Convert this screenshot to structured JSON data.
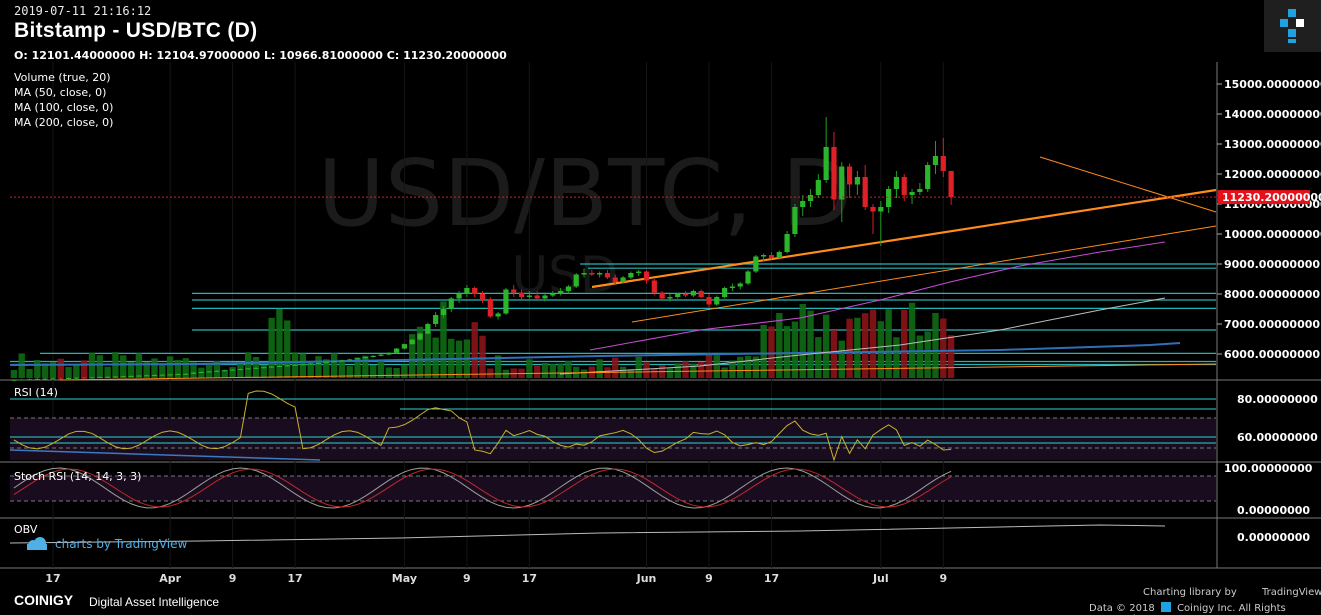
{
  "header": {
    "timestamp": "2019-07-11 21:16:12",
    "title": "Bitstamp - USD/BTC (D)",
    "ohlc": "O: 12101.44000000 H: 12104.97000000 L: 10966.81000000 C: 11230.20000000"
  },
  "studies": [
    "Volume (true, 20)",
    "MA (50, close, 0)",
    "MA (100, close, 0)",
    "MA (200, close, 0)"
  ],
  "panes": {
    "rsi_title": "RSI (14)",
    "stoch_title": "Stoch RSI (14, 14, 3, 3)",
    "obv_title": "OBV"
  },
  "watermark": {
    "main": "USD/BTC, D",
    "sub": "USD",
    "tv": "charts by TradingView"
  },
  "footer": {
    "brand": "COINIGY",
    "tagline": "Digital Asset Intelligence",
    "charting_library": "Charting library by",
    "tv_brand": "TradingView",
    "data_credit": "Data © 2018",
    "copyright": "Coinigy Inc. All Rights Reserved ©"
  },
  "colors": {
    "up": "#1e9e1e",
    "down": "#d81e26",
    "last_price_bg": "#e5101a",
    "hline": "#2fd3d3",
    "trend": "#ff8c1a",
    "ma50": "#c74cd6",
    "ma100": "#bdbdbd",
    "ma200": "#2f6fb8",
    "rsi": "#c9b22a",
    "stoch_k": "#9e9e9e",
    "stoch_d": "#c0282d"
  },
  "chart_data": {
    "type": "candlestick",
    "price_axis": {
      "labels": [
        "15000.00000000",
        "14000.00000000",
        "13000.00000000",
        "12000.00000000",
        "11000.00000000",
        "10000.00000000",
        "9000.00000000",
        "8000.00000000",
        "7000.00000000",
        "6000.00000000"
      ],
      "values": [
        15000,
        14000,
        13000,
        12000,
        11000,
        10000,
        9000,
        8000,
        7000,
        6000
      ],
      "last_price": 11230.2,
      "last_price_label": "11230.20000000"
    },
    "rsi_axis": {
      "labels": [
        "80.00000000",
        "60.00000000"
      ],
      "values": [
        80,
        60
      ]
    },
    "stoch_axis": {
      "labels": [
        "100.00000000",
        "0.00000000"
      ],
      "values": [
        100,
        0
      ]
    },
    "obv_axis": {
      "labels": [
        "0.00000000"
      ],
      "values": [
        0
      ]
    },
    "time_axis": {
      "labels": [
        "17",
        "Apr",
        "9",
        "17",
        "May",
        "9",
        "17",
        "Jun",
        "9",
        "17",
        "Jul",
        "9"
      ],
      "dates": [
        "2019-03-17",
        "2019-04-01",
        "2019-04-09",
        "2019-04-17",
        "2019-05-01",
        "2019-05-09",
        "2019-05-17",
        "2019-06-01",
        "2019-06-09",
        "2019-06-17",
        "2019-07-01",
        "2019-07-09"
      ]
    },
    "first_date": "2019-03-12",
    "candles": [
      [
        5130,
        5160,
        5110,
        5140
      ],
      [
        5140,
        5170,
        5120,
        5150
      ],
      [
        5150,
        5180,
        5130,
        5160
      ],
      [
        5160,
        5200,
        5140,
        5170
      ],
      [
        5170,
        5200,
        5150,
        5180
      ],
      [
        5180,
        5210,
        5160,
        5190
      ],
      [
        5190,
        5220,
        5170,
        5180
      ],
      [
        5180,
        5210,
        5160,
        5200
      ],
      [
        5200,
        5230,
        5180,
        5210
      ],
      [
        5210,
        5240,
        5190,
        5200
      ],
      [
        5200,
        5230,
        5180,
        5220
      ],
      [
        5220,
        5250,
        5200,
        5230
      ],
      [
        5230,
        5260,
        5210,
        5240
      ],
      [
        5240,
        5270,
        5220,
        5250
      ],
      [
        5250,
        5280,
        5230,
        5260
      ],
      [
        5260,
        5290,
        5240,
        5270
      ],
      [
        5270,
        5300,
        5250,
        5280
      ],
      [
        5280,
        5310,
        5260,
        5290
      ],
      [
        5290,
        5320,
        5270,
        5300
      ],
      [
        5300,
        5330,
        5280,
        5310
      ],
      [
        5310,
        5340,
        5290,
        5320
      ],
      [
        5320,
        5350,
        5300,
        5330
      ],
      [
        5330,
        5360,
        5310,
        5340
      ],
      [
        5340,
        5400,
        5320,
        5380
      ],
      [
        5380,
        5420,
        5360,
        5400
      ],
      [
        5400,
        5440,
        5380,
        5420
      ],
      [
        5420,
        5460,
        5400,
        5440
      ],
      [
        5440,
        5480,
        5420,
        5460
      ],
      [
        5460,
        5500,
        5440,
        5480
      ],
      [
        5480,
        5520,
        5460,
        5500
      ],
      [
        5500,
        5540,
        5480,
        5520
      ],
      [
        5520,
        5560,
        5500,
        5540
      ],
      [
        5540,
        5580,
        5520,
        5560
      ],
      [
        5560,
        5600,
        5540,
        5580
      ],
      [
        5580,
        5620,
        5560,
        5600
      ],
      [
        5600,
        5640,
        5580,
        5620
      ],
      [
        5620,
        5660,
        5600,
        5640
      ],
      [
        5640,
        5680,
        5620,
        5660
      ],
      [
        5660,
        5700,
        5640,
        5680
      ],
      [
        5680,
        5720,
        5660,
        5700
      ],
      [
        5700,
        5750,
        5680,
        5730
      ],
      [
        5730,
        5780,
        5710,
        5760
      ],
      [
        5760,
        5810,
        5740,
        5790
      ],
      [
        5790,
        5840,
        5770,
        5820
      ],
      [
        5820,
        5880,
        5800,
        5860
      ],
      [
        5860,
        5920,
        5840,
        5900
      ],
      [
        5900,
        5960,
        5880,
        5940
      ],
      [
        5940,
        6000,
        5920,
        5980
      ],
      [
        5980,
        6060,
        5960,
        6040
      ],
      [
        6040,
        6200,
        6020,
        6180
      ],
      [
        6180,
        6350,
        6150,
        6330
      ],
      [
        6330,
        6500,
        6300,
        6480
      ],
      [
        6480,
        6700,
        6450,
        6680
      ],
      [
        6680,
        7050,
        6650,
        7000
      ],
      [
        7000,
        7400,
        6900,
        7300
      ],
      [
        7300,
        7600,
        7200,
        7500
      ],
      [
        7500,
        7900,
        7400,
        7850
      ],
      [
        7850,
        8100,
        7700,
        8000
      ],
      [
        8000,
        8300,
        7900,
        8200
      ],
      [
        8200,
        8250,
        7900,
        8000
      ],
      [
        8000,
        8100,
        7700,
        7800
      ],
      [
        7800,
        7900,
        7200,
        7250
      ],
      [
        7250,
        7400,
        7150,
        7350
      ],
      [
        7350,
        8200,
        7300,
        8150
      ],
      [
        8150,
        8300,
        7900,
        8050
      ],
      [
        8050,
        8150,
        7800,
        7900
      ],
      [
        7900,
        8100,
        7850,
        7950
      ],
      [
        7950,
        8100,
        7800,
        7850
      ],
      [
        7850,
        8000,
        7750,
        7950
      ],
      [
        7950,
        8100,
        7900,
        8000
      ],
      [
        8000,
        8200,
        7950,
        8100
      ],
      [
        8100,
        8300,
        8000,
        8250
      ],
      [
        8250,
        8700,
        8200,
        8650
      ],
      [
        8650,
        8850,
        8550,
        8700
      ],
      [
        8700,
        8800,
        8600,
        8650
      ],
      [
        8650,
        8750,
        8550,
        8700
      ],
      [
        8700,
        8800,
        8500,
        8550
      ],
      [
        8550,
        8650,
        8300,
        8400
      ],
      [
        8400,
        8600,
        8350,
        8550
      ],
      [
        8550,
        8750,
        8500,
        8700
      ],
      [
        8700,
        8800,
        8600,
        8750
      ],
      [
        8750,
        8800,
        8350,
        8450
      ],
      [
        8450,
        8500,
        7950,
        8050
      ],
      [
        8050,
        8100,
        7800,
        7850
      ],
      [
        7850,
        8000,
        7750,
        7900
      ],
      [
        7900,
        8050,
        7850,
        8000
      ],
      [
        8000,
        8100,
        7900,
        7950
      ],
      [
        7950,
        8150,
        7900,
        8100
      ],
      [
        8100,
        8150,
        7850,
        7900
      ],
      [
        7900,
        8000,
        7550,
        7650
      ],
      [
        7650,
        7950,
        7600,
        7900
      ],
      [
        7900,
        8250,
        7850,
        8200
      ],
      [
        8200,
        8350,
        8100,
        8250
      ],
      [
        8250,
        8400,
        8150,
        8350
      ],
      [
        8350,
        8800,
        8300,
        8750
      ],
      [
        8750,
        9300,
        8700,
        9250
      ],
      [
        9250,
        9350,
        9100,
        9300
      ],
      [
        9300,
        9400,
        9150,
        9200
      ],
      [
        9200,
        9450,
        9150,
        9400
      ],
      [
        9400,
        10100,
        9350,
        10000
      ],
      [
        10000,
        11000,
        9900,
        10900
      ],
      [
        10900,
        11300,
        10600,
        11100
      ],
      [
        11100,
        11500,
        10900,
        11300
      ],
      [
        11300,
        12000,
        11200,
        11800
      ],
      [
        11800,
        13900,
        11700,
        12900
      ],
      [
        12900,
        13400,
        10800,
        11150
      ],
      [
        11150,
        12400,
        10400,
        12250
      ],
      [
        12250,
        12350,
        11200,
        11650
      ],
      [
        11650,
        12100,
        11300,
        11900
      ],
      [
        11900,
        12300,
        10800,
        10900
      ],
      [
        10900,
        11000,
        10000,
        10750
      ],
      [
        10750,
        11100,
        9600,
        10900
      ],
      [
        10900,
        11600,
        10700,
        11500
      ],
      [
        11500,
        12100,
        11200,
        11900
      ],
      [
        11900,
        12000,
        11100,
        11300
      ],
      [
        11300,
        11500,
        11000,
        11400
      ],
      [
        11400,
        11700,
        11300,
        11500
      ],
      [
        11500,
        12400,
        11400,
        12300
      ],
      [
        12300,
        13100,
        12000,
        12600
      ],
      [
        12600,
        13200,
        11900,
        12101
      ],
      [
        12101,
        12105,
        10967,
        11230
      ]
    ],
    "volume_note": "Volume bars shown relative; MA(50) magenta, MA(100) gray, MA(200) blue"
  }
}
